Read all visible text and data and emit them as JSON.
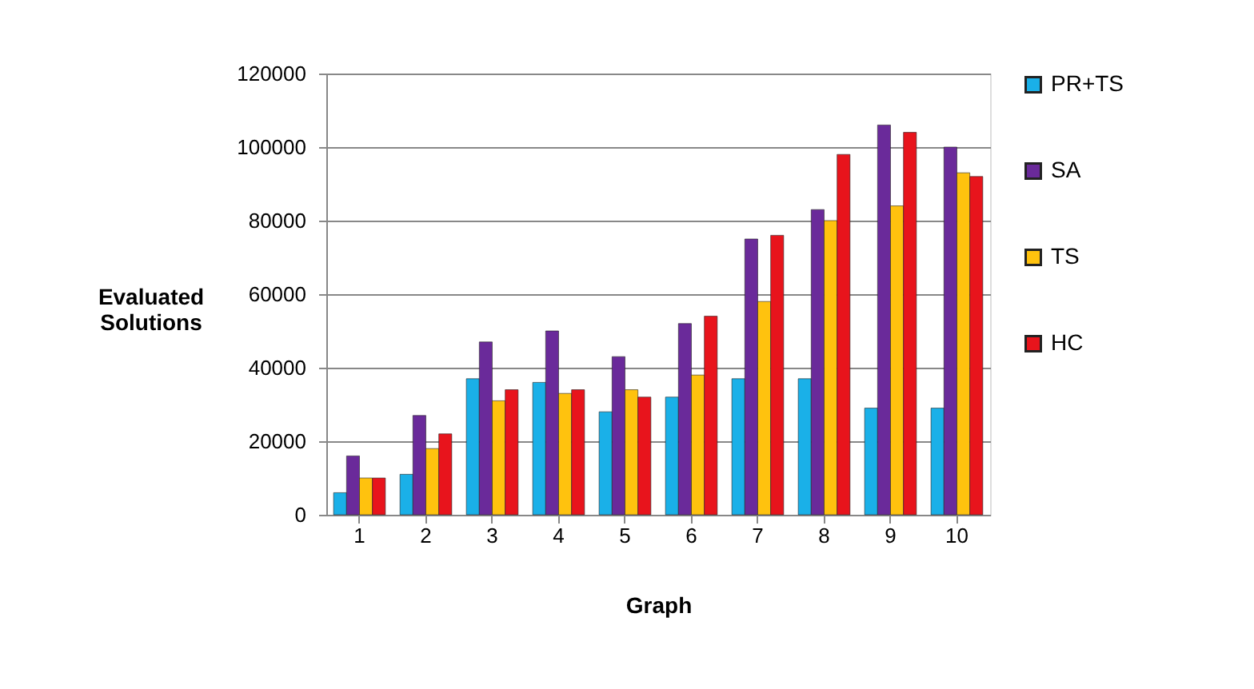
{
  "chart_data": {
    "type": "bar",
    "xlabel": "Graph",
    "ylabel": "Evaluated Solutions",
    "categories": [
      "1",
      "2",
      "3",
      "4",
      "5",
      "6",
      "7",
      "8",
      "9",
      "10"
    ],
    "series": [
      {
        "name": "PR+TS",
        "color": "#1ab0e8",
        "values": [
          6000,
          11000,
          37000,
          36000,
          28000,
          32000,
          37000,
          37000,
          29000,
          29000
        ]
      },
      {
        "name": "SA",
        "color": "#6a2a9a",
        "values": [
          16000,
          27000,
          47000,
          50000,
          43000,
          52000,
          75000,
          83000,
          106000,
          100000
        ]
      },
      {
        "name": "TS",
        "color": "#ffc20e",
        "values": [
          10000,
          18000,
          31000,
          33000,
          34000,
          38000,
          58000,
          80000,
          84000,
          93000
        ]
      },
      {
        "name": "HC",
        "color": "#e8141c",
        "values": [
          10000,
          22000,
          34000,
          34000,
          32000,
          54000,
          76000,
          98000,
          104000,
          92000
        ]
      }
    ],
    "ylim": [
      0,
      120000
    ],
    "yticks": [
      0,
      20000,
      40000,
      60000,
      80000,
      100000,
      120000
    ],
    "grid": "y",
    "legend": "right"
  }
}
